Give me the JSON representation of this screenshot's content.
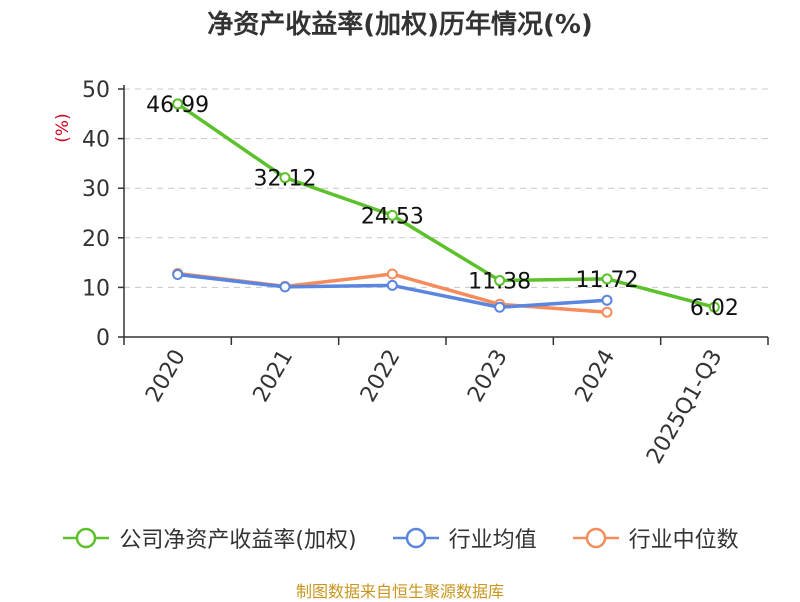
{
  "chart_data": {
    "type": "line",
    "title": "净资产收益率(加权)历年情况(%)",
    "ylabel": "(%)",
    "xlabel": "",
    "categories": [
      "2020",
      "2021",
      "2022",
      "2023",
      "2024",
      "2025Q1-Q3"
    ],
    "ylim": [
      0,
      50
    ],
    "yticks": [
      0,
      10,
      20,
      30,
      40,
      50
    ],
    "grid": true,
    "legend_position": "bottom",
    "series": [
      {
        "name": "公司净资产收益率(加权)",
        "color": "#5cc12a",
        "values": [
          46.99,
          32.12,
          24.53,
          11.38,
          11.72,
          6.02
        ],
        "labels": [
          "46.99",
          "32.12",
          "24.53",
          "11.38",
          "11.72",
          "6.02"
        ]
      },
      {
        "name": "行业均值",
        "color": "#5b86e0",
        "values": [
          12.6,
          10.1,
          10.4,
          6.0,
          7.4,
          null
        ]
      },
      {
        "name": "行业中位数",
        "color": "#f58c5c",
        "values": [
          12.8,
          10.2,
          12.7,
          6.6,
          5.0,
          null
        ]
      }
    ]
  },
  "source": "制图数据来自恒生聚源数据库"
}
